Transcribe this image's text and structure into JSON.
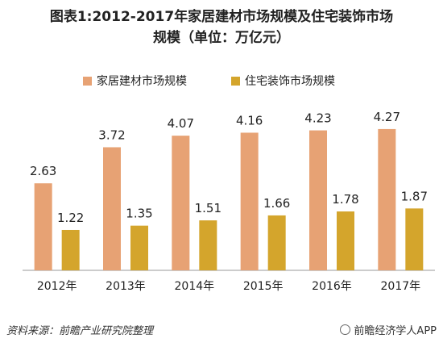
{
  "title": "图表1:2012-2017年家居建材市场规模及住宅装饰市场规模（单位：万亿元）",
  "title_lines": [
    "图表1:2012-2017年家居建材市场规模及住宅装饰市场",
    "规模（单位：万亿元）"
  ],
  "footer": {
    "source": "资料来源：前瞻产业研究院整理",
    "brand": "前瞻经济学人APP"
  },
  "colors": {
    "series1": "#E7A274",
    "series2": "#D4A52C",
    "axis": "#9a9a9a"
  },
  "chart_data": {
    "type": "bar",
    "title": "图表1:2012-2017年家居建材市场规模及住宅装饰市场规模（单位：万亿元）",
    "categories": [
      "2012年",
      "2013年",
      "2014年",
      "2015年",
      "2016年",
      "2017年"
    ],
    "series": [
      {
        "name": "家居建材市场规模",
        "values": [
          2.63,
          3.72,
          4.07,
          4.16,
          4.23,
          4.27
        ]
      },
      {
        "name": "住宅装饰市场规模",
        "values": [
          1.22,
          1.35,
          1.51,
          1.66,
          1.78,
          1.87
        ]
      }
    ],
    "ylim": [
      0,
      5
    ],
    "grid": false,
    "legend": "top-center",
    "data_labels": true
  }
}
